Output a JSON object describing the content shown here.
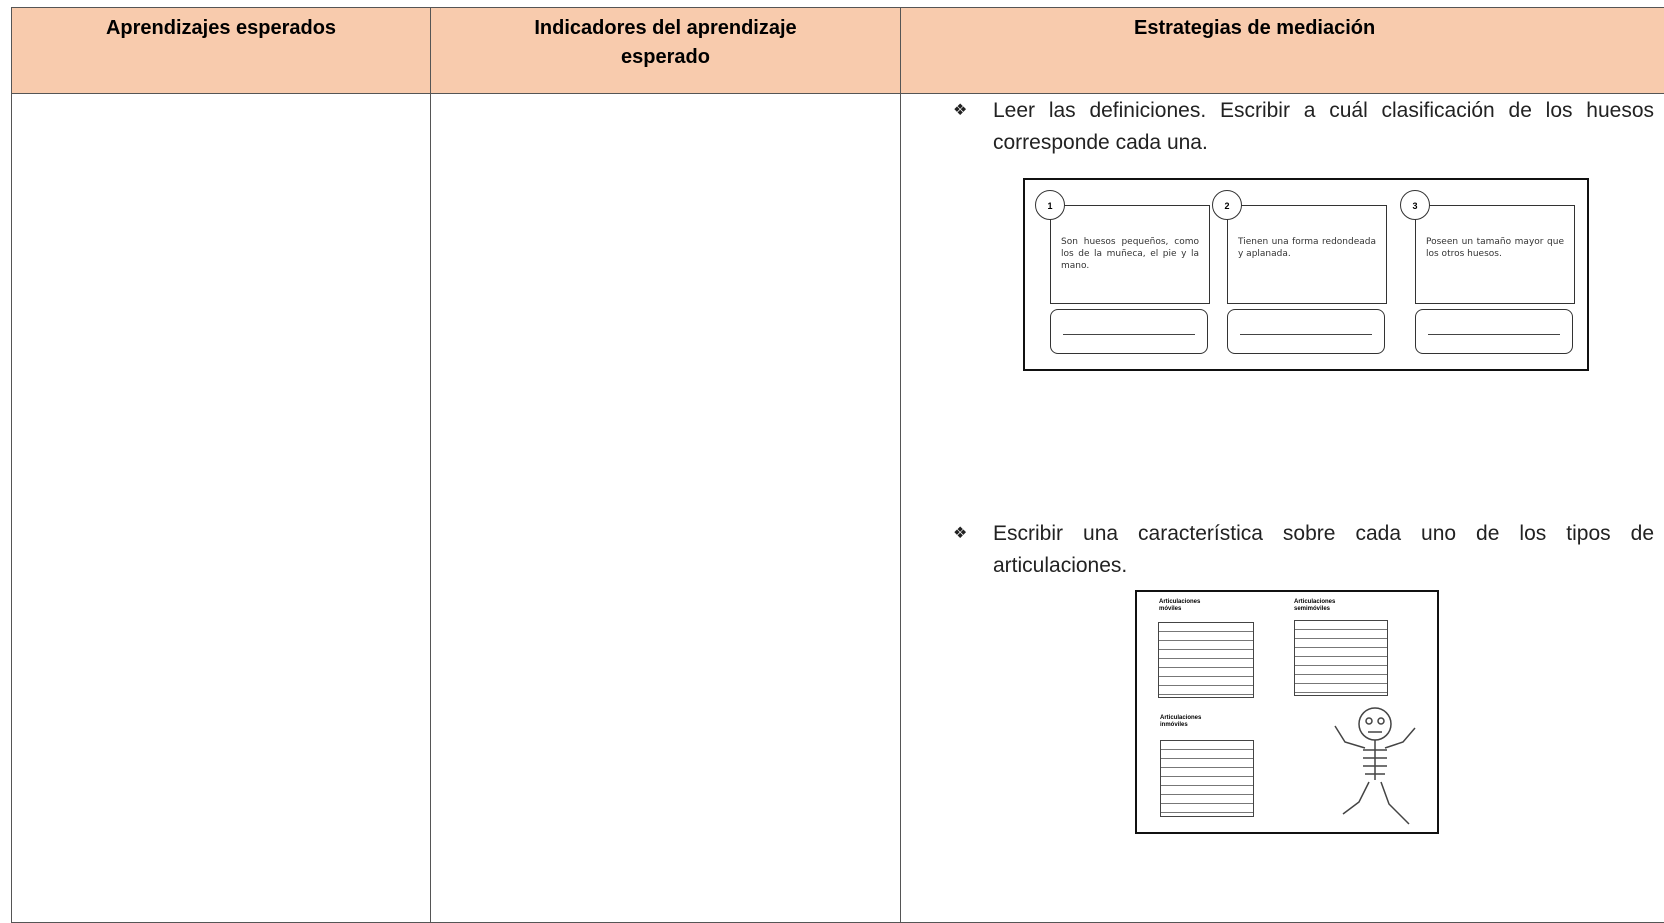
{
  "table": {
    "headers": [
      "Aprendizajes esperados",
      "Indicadores del aprendizaje esperado",
      "Estrategias de mediación"
    ],
    "strategies": [
      {
        "text": "Leer las definiciones. Escribir a cuál clasificación de los huesos corresponde cada una.",
        "cards": [
          {
            "number": "1",
            "text": "Son huesos pequeños, como los de la muñeca, el pie y la mano."
          },
          {
            "number": "2",
            "text": "Tienen una forma redondeada y aplanada."
          },
          {
            "number": "3",
            "text": "Poseen un tamaño mayor que los otros huesos."
          }
        ]
      },
      {
        "text": "Escribir una característica sobre cada uno de los tipos de articulaciones.",
        "labels": [
          "Articulaciones móviles",
          "Articulaciones semimóviles",
          "Articulaciones inmóviles"
        ]
      }
    ]
  }
}
